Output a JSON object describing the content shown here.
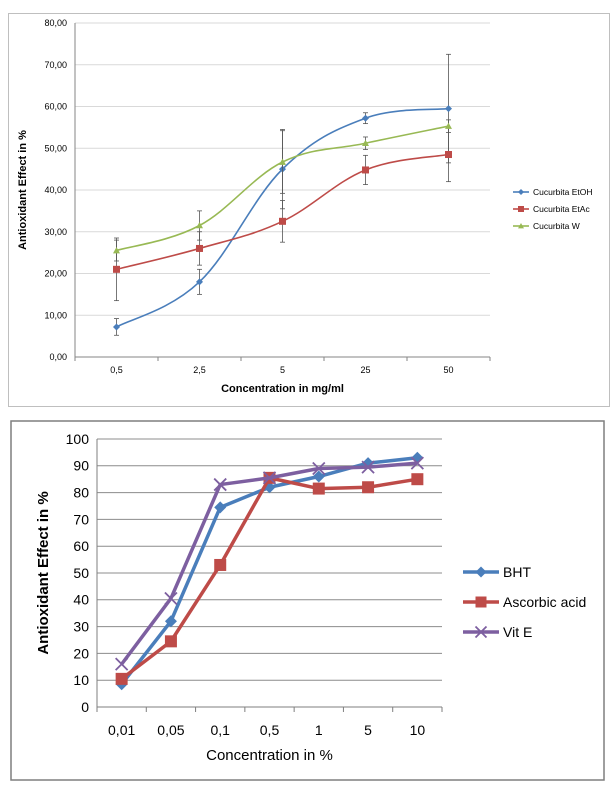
{
  "chart_data": [
    {
      "type": "line",
      "title": "",
      "xlabel": "Concentration in mg/ml",
      "ylabel": "Antioxidant Effect in %",
      "categories": [
        "0,5",
        "2,5",
        "5",
        "25",
        "50"
      ],
      "ylim": [
        0,
        80
      ],
      "yticks": [
        "0,00",
        "10,00",
        "20,00",
        "30,00",
        "40,00",
        "50,00",
        "60,00",
        "70,00",
        "80,00"
      ],
      "grid": true,
      "error_bars": true,
      "legend_position": "right",
      "series": [
        {
          "name": "Cucurbita EtOH",
          "color": "#4a7ebb",
          "marker": "diamond",
          "values": [
            7.2,
            18.0,
            45.0,
            57.2,
            59.5
          ],
          "errors": [
            2.0,
            3.0,
            9.5,
            1.3,
            13.0
          ]
        },
        {
          "name": "Cucurbita EtAc",
          "color": "#be4b48",
          "marker": "square",
          "values": [
            21.0,
            26.0,
            32.5,
            44.8,
            48.5
          ],
          "errors": [
            7.5,
            4.0,
            5.0,
            3.5,
            6.5
          ]
        },
        {
          "name": "Cucurbita W",
          "color": "#98b954",
          "marker": "triangle",
          "values": [
            25.5,
            31.5,
            46.7,
            51.2,
            55.3
          ],
          "errors": [
            2.5,
            3.5,
            7.5,
            1.5,
            1.5
          ]
        }
      ]
    },
    {
      "type": "line",
      "title": "",
      "xlabel": "Concentration in %",
      "ylabel": "Antioxidant Effect in %",
      "categories": [
        "0,01",
        "0,05",
        "0,1",
        "0,5",
        "1",
        "5",
        "10"
      ],
      "ylim": [
        0,
        100
      ],
      "yticks": [
        "0",
        "10",
        "20",
        "30",
        "40",
        "50",
        "60",
        "70",
        "80",
        "90",
        "100"
      ],
      "grid": true,
      "legend_position": "right",
      "series": [
        {
          "name": "BHT",
          "color": "#4a7ebb",
          "marker": "diamond",
          "values": [
            8.5,
            32.0,
            74.5,
            82.0,
            86.0,
            91.0,
            93.0
          ]
        },
        {
          "name": "Ascorbic acid",
          "color": "#be4b48",
          "marker": "square",
          "values": [
            10.5,
            24.5,
            53.0,
            85.5,
            81.5,
            82.0,
            85.0
          ]
        },
        {
          "name": "Vit E",
          "color": "#7d5fa0",
          "marker": "x",
          "values": [
            16.0,
            40.5,
            83.0,
            85.5,
            89.0,
            89.5,
            91.0
          ]
        }
      ]
    }
  ]
}
